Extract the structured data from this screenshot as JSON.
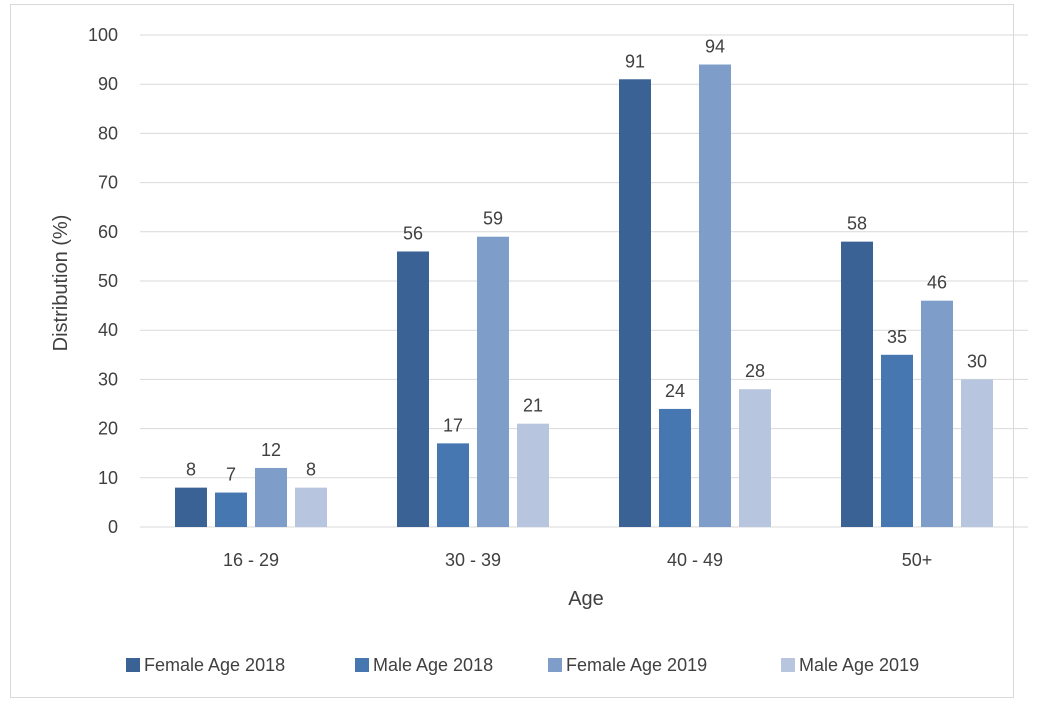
{
  "chart_data": {
    "type": "bar",
    "categories": [
      "16 - 29",
      "30 - 39",
      "40 - 49",
      "50+"
    ],
    "series": [
      {
        "name": "Female Age 2018",
        "values": [
          8,
          56,
          91,
          58
        ],
        "color": "#3a6294"
      },
      {
        "name": "Male Age 2018",
        "values": [
          7,
          17,
          24,
          35
        ],
        "color": "#4677b1"
      },
      {
        "name": "Female Age 2019",
        "values": [
          12,
          59,
          94,
          46
        ],
        "color": "#7e9ec9"
      },
      {
        "name": "Male Age 2019",
        "values": [
          8,
          21,
          28,
          30
        ],
        "color": "#b7c5df"
      }
    ],
    "title": "",
    "xlabel": "Age",
    "ylabel": "Distribution (%)",
    "ylim": [
      0,
      100
    ],
    "yticks": [
      0,
      10,
      20,
      30,
      40,
      50,
      60,
      70,
      80,
      90,
      100
    ],
    "grid": true,
    "legend_position": "bottom",
    "data_labels": true
  }
}
